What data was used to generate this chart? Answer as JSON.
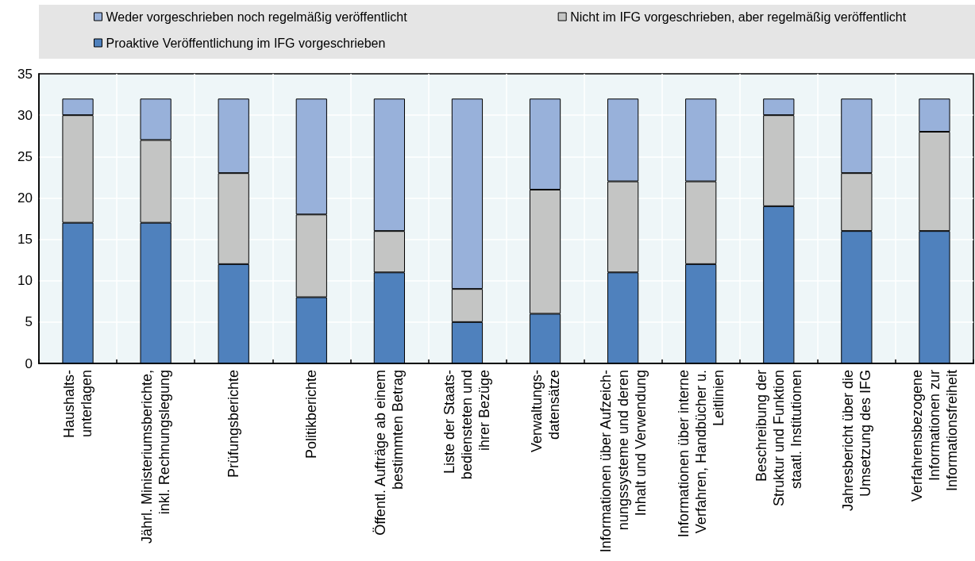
{
  "chart_data": {
    "type": "bar",
    "stacked": true,
    "categories": [
      "Haushalts-\nunterlagen",
      "Jährl. Ministeriumsberichte,\ninkl. Rechnungslegung",
      "Prüfungsberichte",
      "Politikberichte",
      "Öffentl. Aufträge ab einem\nbestimmten Betrag",
      "Liste der Staats-\nbediensteten und\nihrer Bezüge",
      "Verwaltungs-\ndatensätze",
      "Informationen über Aufzeich-\nnungssysteme und deren\nInhalt und Verwendung",
      "Informationen über interne\nVerfahren, Handbücher u.\nLeitlinien",
      "Beschreibung der\nStruktur und Funktion\nstaatl. Institutionen",
      "Jahresbericht über die\nUmsetzung des IFG",
      "Verfahrensbezogene\nInformationen zur\nInformationsfreiheit"
    ],
    "series": [
      {
        "name": "Proaktive Veröffentlichung im IFG vorgeschrieben",
        "color": "#4f81bd",
        "values": [
          17,
          17,
          12,
          8,
          11,
          5,
          6,
          11,
          12,
          19,
          16,
          16
        ]
      },
      {
        "name": "Nicht im IFG vorgeschrieben, aber regelmäßig veröffentlicht",
        "color": "#c4c5c4",
        "values": [
          13,
          10,
          11,
          10,
          5,
          4,
          15,
          11,
          10,
          11,
          7,
          12
        ]
      },
      {
        "name": "Weder vorgeschrieben noch regelmäßig veröffentlicht",
        "color": "#98b1da",
        "values": [
          2,
          5,
          9,
          14,
          16,
          23,
          11,
          10,
          10,
          2,
          9,
          4
        ]
      }
    ],
    "ylim": [
      0,
      35
    ],
    "yticks": [
      0,
      5,
      10,
      15,
      20,
      25,
      30,
      35
    ],
    "grid": true,
    "legend": "top"
  }
}
